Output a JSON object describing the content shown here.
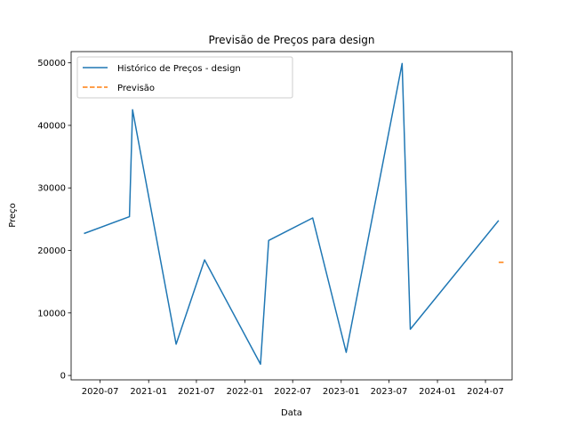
{
  "chart_data": {
    "type": "line",
    "title": "Previsão de Preços para design",
    "xlabel": "Data",
    "ylabel": "Preço",
    "xlim": [
      "2020-03-13",
      "2024-10-10"
    ],
    "ylim": [
      -700,
      51800
    ],
    "x_ticks": [
      "2020-07",
      "2021-01",
      "2021-07",
      "2022-01",
      "2022-07",
      "2023-01",
      "2023-07",
      "2024-01",
      "2024-07"
    ],
    "y_ticks": [
      0,
      10000,
      20000,
      30000,
      40000,
      50000
    ],
    "legend_position": "upper-left",
    "grid": false,
    "series": [
      {
        "name": "Histórico de Preços - design",
        "color": "#1f77b4",
        "style": "solid",
        "points": [
          {
            "x": "2020-05-01",
            "y": 22700
          },
          {
            "x": "2020-10-20",
            "y": 25400
          },
          {
            "x": "2020-11-01",
            "y": 42500
          },
          {
            "x": "2021-04-15",
            "y": 5000
          },
          {
            "x": "2021-08-01",
            "y": 18500
          },
          {
            "x": "2022-03-01",
            "y": 1800
          },
          {
            "x": "2022-04-01",
            "y": 21600
          },
          {
            "x": "2022-09-15",
            "y": 25200
          },
          {
            "x": "2023-01-20",
            "y": 3700
          },
          {
            "x": "2023-08-20",
            "y": 49900
          },
          {
            "x": "2023-09-20",
            "y": 7400
          },
          {
            "x": "2024-08-20",
            "y": 24800
          }
        ]
      },
      {
        "name": "Previsão",
        "color": "#ff7f0e",
        "style": "dashed",
        "points": [
          {
            "x": "2024-08-20",
            "y": 18100
          },
          {
            "x": "2024-09-15",
            "y": 18100
          }
        ]
      }
    ]
  }
}
